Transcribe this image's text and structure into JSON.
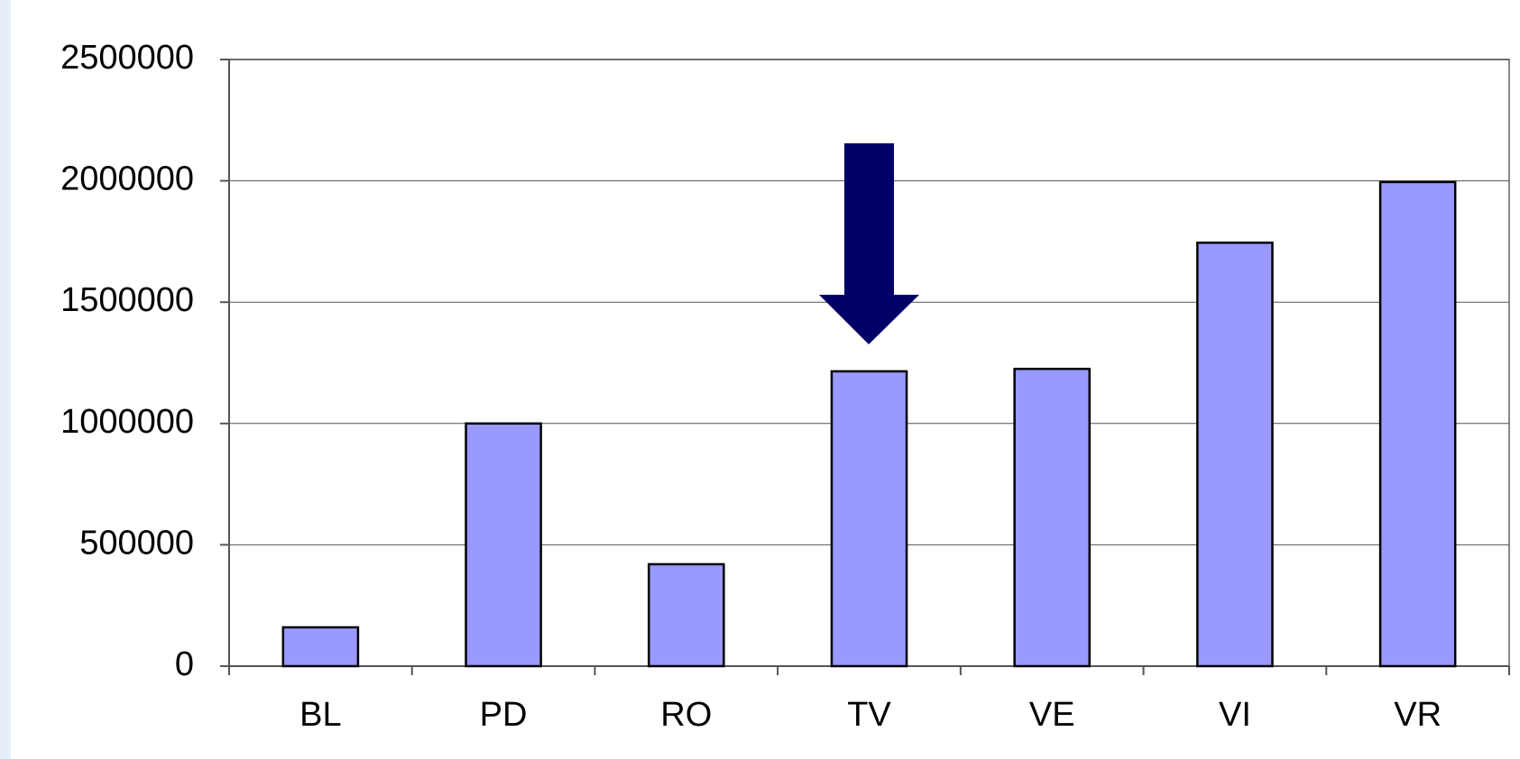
{
  "chart_data": {
    "type": "bar",
    "categories": [
      "BL",
      "PD",
      "RO",
      "TV",
      "VE",
      "VI",
      "VR"
    ],
    "values": [
      160000,
      1000000,
      420000,
      1215000,
      1225000,
      1745000,
      1995000
    ],
    "color": "#9999ff",
    "ylim": [
      0,
      2500000
    ],
    "yticks": [
      0,
      500000,
      1000000,
      1500000,
      2000000,
      2500000
    ],
    "grid": true
  }
}
